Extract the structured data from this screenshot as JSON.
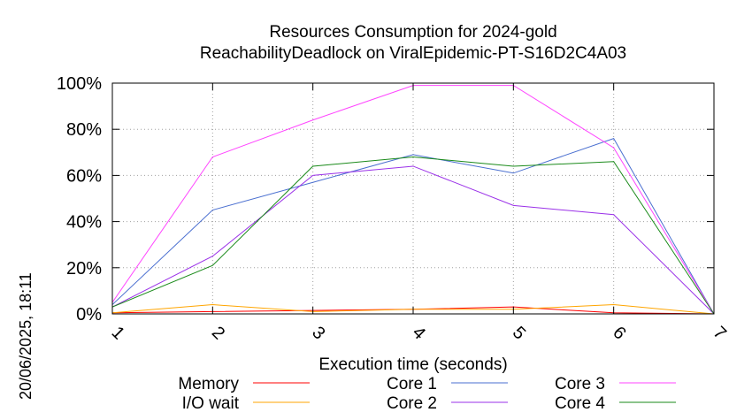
{
  "chart_data": {
    "type": "line",
    "title": "Resources Consumption for 2024-gold",
    "subtitle": "ReachabilityDeadlock on ViralEpidemic-PT-S16D2C4A03",
    "xlabel": "Execution time (seconds)",
    "ylabel": "",
    "x": [
      1,
      2,
      3,
      4,
      5,
      6,
      7
    ],
    "xlim": [
      1,
      7
    ],
    "ylim": [
      0,
      100
    ],
    "x_ticks": [
      "1",
      "2",
      "3",
      "4",
      "5",
      "6",
      "7"
    ],
    "y_ticks": [
      "0%",
      "20%",
      "40%",
      "60%",
      "80%",
      "100%"
    ],
    "grid": true,
    "legend_position": "bottom",
    "timestamp": "20/06/2025, 18:11",
    "series": [
      {
        "name": "Memory",
        "color": "#ff0000",
        "values": [
          0.5,
          1,
          1.5,
          2,
          3,
          0.5,
          0
        ]
      },
      {
        "name": "I/O wait",
        "color": "#ffa500",
        "values": [
          0.5,
          4,
          1,
          2,
          2,
          4,
          0
        ]
      },
      {
        "name": "Core 1",
        "color": "#4a6fd0",
        "values": [
          4,
          45,
          57,
          69,
          61,
          76,
          0
        ]
      },
      {
        "name": "Core 2",
        "color": "#9a30e8",
        "values": [
          3,
          25,
          60,
          64,
          47,
          43,
          0
        ]
      },
      {
        "name": "Core 3",
        "color": "#ff44ff",
        "values": [
          5,
          68,
          84,
          99,
          99,
          72,
          0
        ]
      },
      {
        "name": "Core 4",
        "color": "#1a8a1a",
        "values": [
          3,
          21,
          64,
          68,
          64,
          66,
          0
        ]
      }
    ]
  }
}
